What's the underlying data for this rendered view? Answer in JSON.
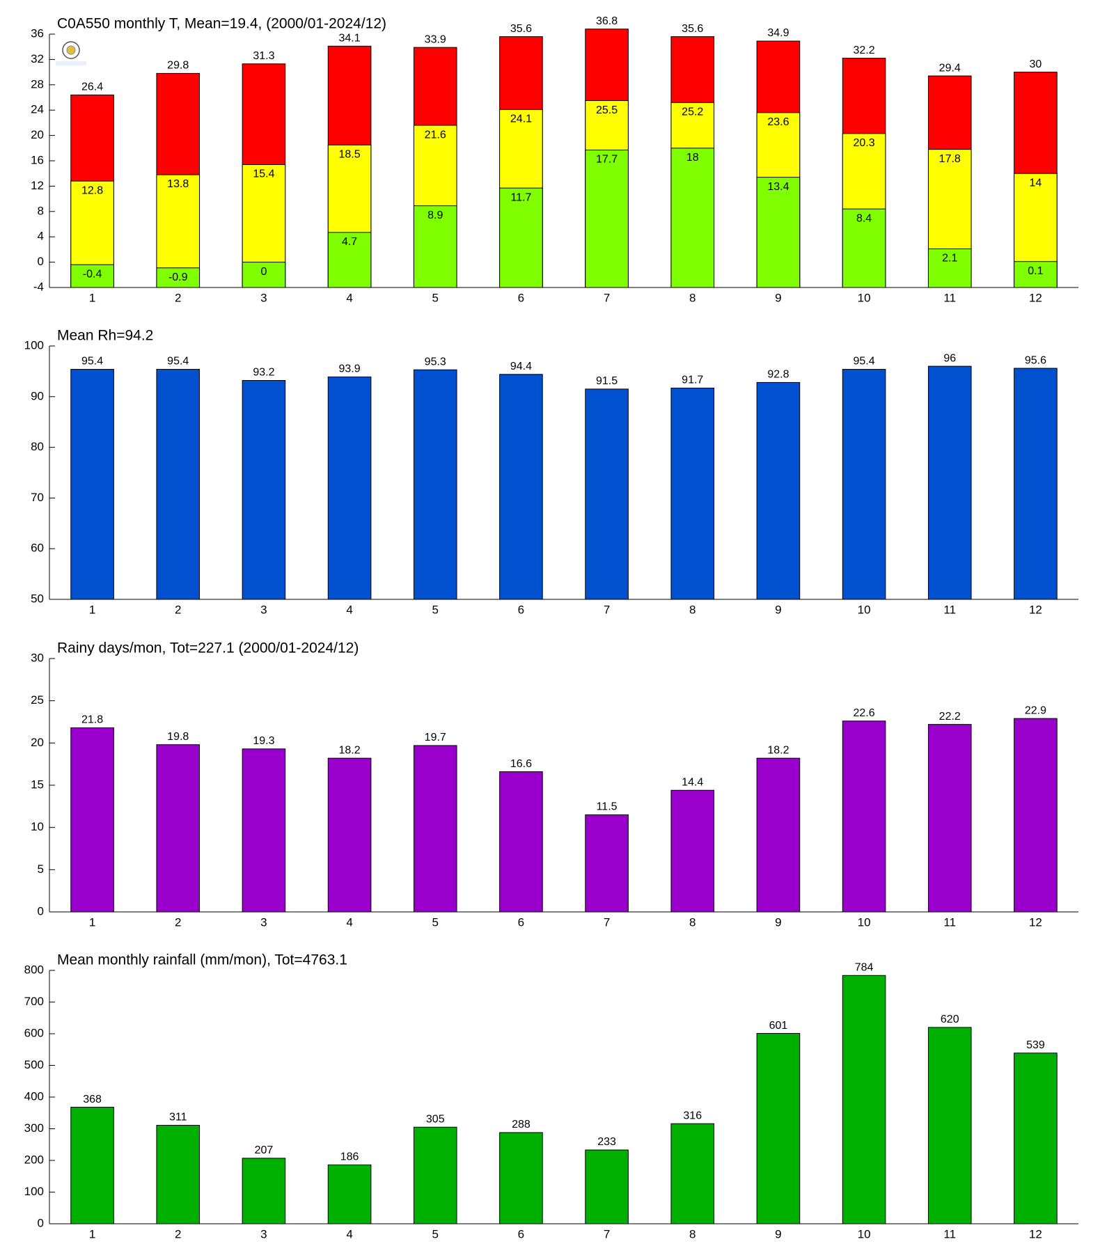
{
  "chart_data": [
    {
      "type": "bar",
      "title": "C0A550 monthly T, Mean=19.4, (2000/01-2024/12)",
      "categories": [
        "1",
        "2",
        "3",
        "4",
        "5",
        "6",
        "7",
        "8",
        "9",
        "10",
        "11",
        "12"
      ],
      "series": [
        {
          "color": "#ff0000",
          "values": [
            26.4,
            29.8,
            31.3,
            34.1,
            33.9,
            35.6,
            36.8,
            35.6,
            34.9,
            32.2,
            29.4,
            30
          ]
        },
        {
          "color": "#ffff00",
          "values": [
            12.8,
            13.8,
            15.4,
            18.5,
            21.6,
            24.1,
            25.5,
            25.2,
            23.6,
            20.3,
            17.8,
            14
          ]
        },
        {
          "color": "#80ff00",
          "values": [
            -0.4,
            -0.9,
            0,
            4.7,
            8.9,
            11.7,
            17.7,
            18,
            13.4,
            8.4,
            2.1,
            0.1
          ]
        }
      ],
      "ylim": [
        -4,
        36
      ],
      "yticks": [
        -4,
        0,
        4,
        8,
        12,
        16,
        20,
        24,
        28,
        32,
        36
      ]
    },
    {
      "type": "bar",
      "title": "Mean Rh=94.2",
      "categories": [
        "1",
        "2",
        "3",
        "4",
        "5",
        "6",
        "7",
        "8",
        "9",
        "10",
        "11",
        "12"
      ],
      "values": [
        95.4,
        95.4,
        93.2,
        93.9,
        95.3,
        94.4,
        91.5,
        91.7,
        92.8,
        95.4,
        96,
        95.6
      ],
      "color": "#0050d0",
      "ylim": [
        50,
        100
      ],
      "yticks": [
        50,
        60,
        70,
        80,
        90,
        100
      ]
    },
    {
      "type": "bar",
      "title": "Rainy days/mon, Tot=227.1 (2000/01-2024/12)",
      "categories": [
        "1",
        "2",
        "3",
        "4",
        "5",
        "6",
        "7",
        "8",
        "9",
        "10",
        "11",
        "12"
      ],
      "values": [
        21.8,
        19.8,
        19.3,
        18.2,
        19.7,
        16.6,
        11.5,
        14.4,
        18.2,
        22.6,
        22.2,
        22.9
      ],
      "color": "#9900cc",
      "ylim": [
        0,
        30
      ],
      "yticks": [
        0,
        5,
        10,
        15,
        20,
        25,
        30
      ]
    },
    {
      "type": "bar",
      "title": "Mean monthly rainfall (mm/mon), Tot=4763.1",
      "categories": [
        "1",
        "2",
        "3",
        "4",
        "5",
        "6",
        "7",
        "8",
        "9",
        "10",
        "11",
        "12"
      ],
      "values": [
        368,
        311,
        207,
        186,
        305,
        288,
        233,
        316,
        601,
        784,
        620,
        539
      ],
      "color": "#00b000",
      "ylim": [
        0,
        800
      ],
      "yticks": [
        0,
        100,
        200,
        300,
        400,
        500,
        600,
        700,
        800
      ]
    }
  ]
}
